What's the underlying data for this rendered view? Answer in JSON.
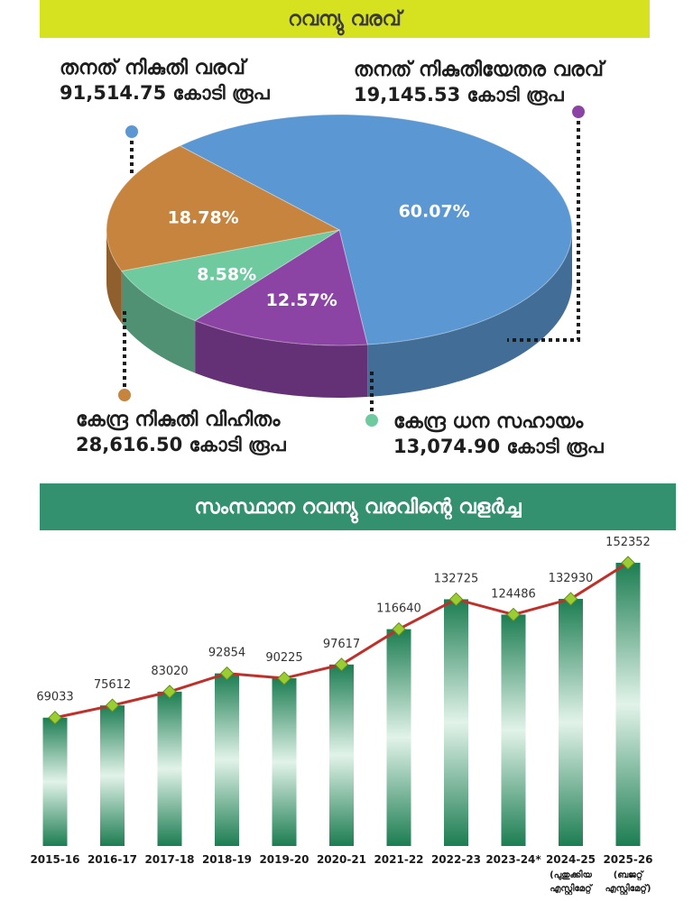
{
  "pie_section": {
    "title": "റവന്യു വരവ്",
    "labels": {
      "own_tax": {
        "name": "തനത് നികുതി വരവ്",
        "value": "91,514.75 കോടി രൂപ"
      },
      "own_non_tax": {
        "name": "തനത് നികുതിയേതര വരവ്",
        "value": "19,145.53 കോടി രൂപ"
      },
      "central_tax_share": {
        "name": "കേന്ദ്ര നികുതി വിഹിതം",
        "value": "28,616.50 കോടി രൂപ"
      },
      "central_grants": {
        "name": "കേന്ദ്ര ധന സഹായം",
        "value": "13,074.90 കോടി രൂപ"
      }
    }
  },
  "bar_section": {
    "title": "സംസ്ഥാന റവന്യു വരവിന്റെ വളർച്ച"
  },
  "chart_data": [
    {
      "type": "pie",
      "title": "റവന്യു വരവ്",
      "slices": [
        {
          "label": "തനത് നികുതി വരവ്",
          "value": 91514.75,
          "percent_label": "60.07%",
          "color": "#5b97d2"
        },
        {
          "label": "തനത് നികുതിയേതര വരവ്",
          "value": 19145.53,
          "percent_label": "12.57%",
          "color": "#8c44a4"
        },
        {
          "label": "കേന്ദ്ര ധന സഹായം",
          "value": 13074.9,
          "percent_label": "8.58%",
          "color": "#6fcaa0"
        },
        {
          "label": "കേന്ദ്ര നികുതി വിഹിതം",
          "value": 28616.5,
          "percent_label": "18.78%",
          "color": "#c6843e"
        }
      ],
      "unit": "കോടി രൂപ"
    },
    {
      "type": "bar",
      "title": "സംസ്ഥാന റവന്യു വരവിന്റെ വളർച്ച",
      "categories": [
        "2015-16",
        "2016-17",
        "2017-18",
        "2018-19",
        "2019-20",
        "2020-21",
        "2021-22",
        "2022-23",
        "2023-24*",
        "2024-25",
        "2025-26"
      ],
      "category_notes": [
        "",
        "",
        "",
        "",
        "",
        "",
        "",
        "",
        "",
        "(പുതുക്കിയ എസ്റ്റിമേറ്റ്",
        "(ബജറ്റ് എസ്റ്റിമേറ്റ്)"
      ],
      "values": [
        69033,
        75612,
        83020,
        92854,
        90225,
        97617,
        116640,
        132725,
        124486,
        132930,
        152352
      ],
      "overlay_line": true,
      "colors": {
        "bar": "#1f8a5a",
        "line": "#c0302a",
        "marker": "#9acd32"
      }
    }
  ]
}
